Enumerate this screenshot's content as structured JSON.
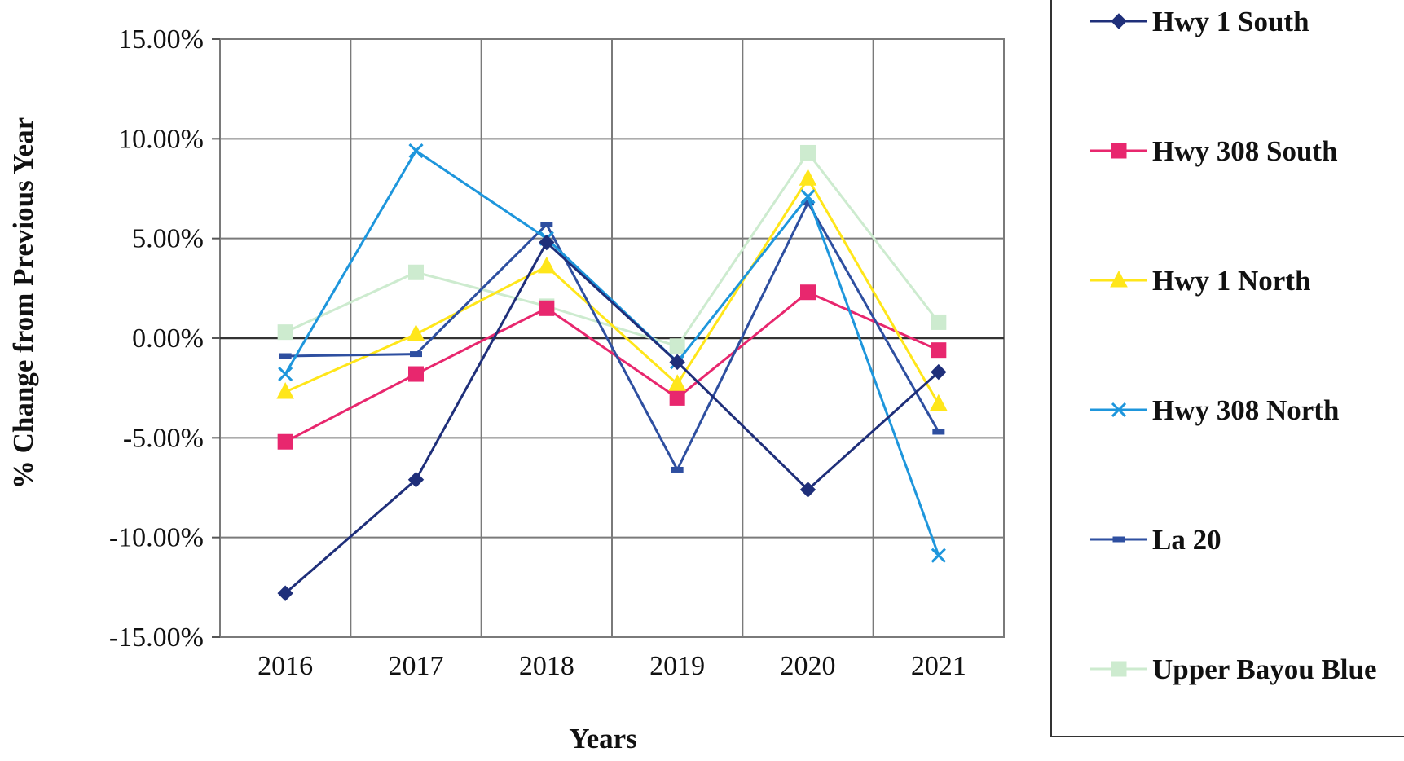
{
  "chart_data": {
    "type": "line",
    "xlabel": "Years",
    "ylabel": "% Change from Previous Year",
    "categories": [
      "2016",
      "2017",
      "2018",
      "2019",
      "2020",
      "2021"
    ],
    "ylim": [
      -15,
      15
    ],
    "yticks": [
      15,
      10,
      5,
      0,
      -5,
      -10,
      -15
    ],
    "ytick_labels": [
      "15.00%",
      "10.00%",
      "5.00%",
      "0.00%",
      "-5.00%",
      "-10.00%",
      "-15.00%"
    ],
    "grid": true,
    "legend_position": "right",
    "series": [
      {
        "name": "Hwy 1 South",
        "color": "#1f2f7a",
        "marker": "diamond",
        "values": [
          -12.8,
          -7.1,
          4.8,
          -1.2,
          -7.6,
          -1.7
        ]
      },
      {
        "name": "Hwy 308 South",
        "color": "#e8276e",
        "marker": "square",
        "values": [
          -5.2,
          -1.8,
          1.5,
          -3.0,
          2.3,
          -0.6
        ]
      },
      {
        "name": "Hwy 1 North",
        "color": "#ffe61a",
        "marker": "triangle",
        "values": [
          -2.7,
          0.2,
          3.6,
          -2.3,
          8.0,
          -3.3
        ]
      },
      {
        "name": "Hwy 308 North",
        "color": "#1e96dc",
        "marker": "x",
        "values": [
          -1.8,
          9.4,
          5.0,
          -1.2,
          7.1,
          -10.9
        ]
      },
      {
        "name": "La 20",
        "color": "#2e4fa0",
        "marker": "dash",
        "values": [
          -0.9,
          -0.8,
          5.7,
          -6.6,
          6.8,
          -4.7
        ]
      },
      {
        "name": "Upper Bayou Blue",
        "color": "#cdebcf",
        "marker": "square",
        "values": [
          0.3,
          3.3,
          1.6,
          -0.4,
          9.3,
          0.8
        ]
      }
    ]
  }
}
